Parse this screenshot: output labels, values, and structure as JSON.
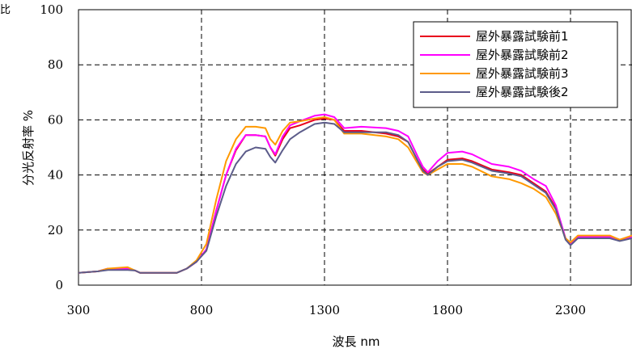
{
  "corner_label": "比",
  "chart_data": {
    "type": "line",
    "title": "",
    "xlabel": "波長 nm",
    "ylabel": "分光反射率 %",
    "xlim": [
      300,
      2550
    ],
    "ylim": [
      0,
      100
    ],
    "xticks": [
      300,
      800,
      1300,
      1800,
      2300
    ],
    "yticks": [
      0,
      20,
      40,
      60,
      80,
      100
    ],
    "grid": true,
    "legend_position": "top-right",
    "series": [
      {
        "name": "屋外暴露試験前1",
        "color": "#e8001c",
        "x": [
          300,
          380,
          420,
          500,
          530,
          550,
          650,
          700,
          740,
          780,
          820,
          860,
          900,
          940,
          980,
          1020,
          1060,
          1080,
          1100,
          1130,
          1160,
          1200,
          1260,
          1300,
          1340,
          1380,
          1450,
          1550,
          1600,
          1640,
          1680,
          1700,
          1720,
          1760,
          1800,
          1860,
          1900,
          1980,
          2050,
          2100,
          2150,
          2200,
          2240,
          2280,
          2300,
          2330,
          2400,
          2460,
          2500,
          2550
        ],
        "y": [
          4.5,
          5,
          6,
          6,
          5.3,
          4.5,
          4.5,
          4.5,
          6,
          8.5,
          13,
          27,
          40,
          49,
          54.5,
          54.5,
          54,
          50,
          47,
          53,
          57,
          58,
          60,
          60.5,
          60,
          56,
          56,
          55,
          54,
          52,
          45,
          42,
          40.5,
          43,
          45.5,
          46,
          45,
          42,
          41,
          40,
          37,
          34,
          28,
          17,
          15,
          17,
          17.5,
          17.5,
          16.5,
          17.5
        ]
      },
      {
        "name": "屋外暴露試験前2",
        "color": "#ff00ff",
        "x": [
          300,
          380,
          420,
          500,
          530,
          550,
          650,
          700,
          740,
          780,
          820,
          860,
          900,
          940,
          980,
          1020,
          1060,
          1080,
          1100,
          1130,
          1160,
          1200,
          1260,
          1300,
          1340,
          1380,
          1450,
          1550,
          1600,
          1640,
          1680,
          1700,
          1720,
          1760,
          1800,
          1860,
          1900,
          1980,
          2050,
          2100,
          2150,
          2200,
          2240,
          2280,
          2300,
          2330,
          2400,
          2460,
          2500,
          2550
        ],
        "y": [
          4.5,
          5,
          6,
          6,
          5.3,
          4.5,
          4.5,
          4.5,
          6,
          8.5,
          13,
          27,
          40,
          49.5,
          54.5,
          54.5,
          54,
          50,
          47.5,
          54,
          58,
          59.5,
          61.5,
          62,
          61,
          57,
          57.5,
          57,
          56,
          54,
          46.5,
          43,
          41,
          45,
          48,
          48.5,
          47.5,
          44,
          43,
          41.5,
          38.5,
          36,
          29,
          17,
          15,
          17.5,
          17.5,
          17.5,
          16.5,
          17.5
        ]
      },
      {
        "name": "屋外暴露試験前3",
        "color": "#ff9900",
        "x": [
          300,
          380,
          420,
          500,
          530,
          550,
          650,
          700,
          740,
          780,
          820,
          860,
          900,
          940,
          980,
          1020,
          1060,
          1080,
          1100,
          1130,
          1160,
          1200,
          1260,
          1300,
          1340,
          1380,
          1450,
          1550,
          1600,
          1640,
          1680,
          1700,
          1720,
          1760,
          1800,
          1860,
          1900,
          1980,
          2050,
          2100,
          2150,
          2200,
          2240,
          2280,
          2300,
          2330,
          2400,
          2460,
          2500,
          2550
        ],
        "y": [
          4.5,
          5,
          6,
          6.5,
          5.3,
          4.5,
          4.5,
          4.5,
          6,
          9,
          15,
          31,
          45,
          53,
          57.5,
          57.5,
          57,
          53,
          51,
          56,
          59,
          59.5,
          60.5,
          61,
          60,
          55,
          55,
          54,
          53,
          50,
          44,
          41,
          40,
          42,
          44,
          44,
          43,
          39.5,
          38.5,
          37,
          35,
          32,
          26,
          17,
          15.5,
          18,
          18,
          18,
          16.5,
          18
        ]
      },
      {
        "name": "屋外暴露試験後2",
        "color": "#5c5c8a",
        "x": [
          300,
          380,
          420,
          500,
          530,
          550,
          650,
          700,
          740,
          780,
          820,
          860,
          900,
          940,
          980,
          1020,
          1060,
          1080,
          1100,
          1130,
          1160,
          1200,
          1260,
          1300,
          1340,
          1380,
          1450,
          1550,
          1600,
          1640,
          1680,
          1700,
          1720,
          1760,
          1800,
          1860,
          1900,
          1980,
          2050,
          2100,
          2150,
          2200,
          2240,
          2280,
          2300,
          2330,
          2400,
          2460,
          2500,
          2550
        ],
        "y": [
          4.5,
          5,
          5.5,
          5.5,
          5.3,
          4.5,
          4.5,
          4.5,
          6,
          8.5,
          12.5,
          25,
          36,
          44,
          48.5,
          50,
          49.5,
          46.5,
          44.5,
          49,
          53,
          55.5,
          58.5,
          59,
          58.5,
          55.5,
          55.5,
          55.5,
          54.5,
          52,
          45,
          41.5,
          40,
          43,
          45,
          45.5,
          44.5,
          41.5,
          40.5,
          39.5,
          36.5,
          33.5,
          27.5,
          16.5,
          14.5,
          17,
          17,
          17,
          16,
          17
        ]
      }
    ]
  }
}
